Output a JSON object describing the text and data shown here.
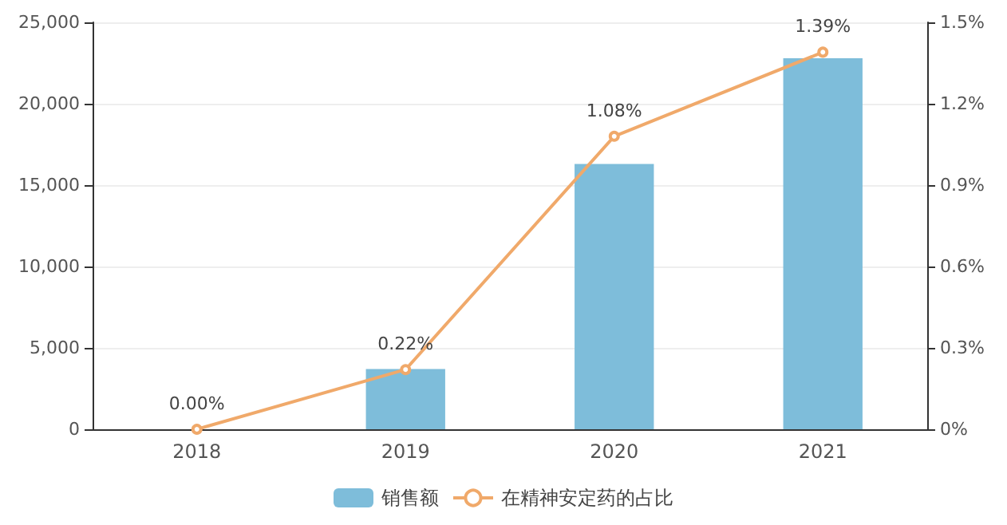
{
  "chart_data": {
    "type": "bar",
    "categories": [
      "2018",
      "2019",
      "2020",
      "2021"
    ],
    "series": [
      {
        "name": "销售额",
        "color": "#7ebdda",
        "values": [
          0,
          3700,
          16300,
          22800
        ]
      },
      {
        "name": "在精神安定药的占比",
        "type": "line",
        "axis": "y2",
        "color": "#f0a96a",
        "values": [
          0.0,
          0.22,
          1.08,
          1.39
        ],
        "value_labels": [
          "0.00%",
          "0.22%",
          "1.08%",
          "1.39%"
        ]
      }
    ],
    "ylim": [
      0,
      25000
    ],
    "yticks": [
      0,
      {
        "value": 5000,
        "label": "5,000"
      },
      {
        "value": 10000,
        "label": "10,000"
      },
      {
        "value": 15000,
        "label": "15,000"
      },
      {
        "value": 20000,
        "label": "20,000"
      },
      {
        "value": 25000,
        "label": "25,000"
      }
    ],
    "y2lim": [
      0,
      1.5
    ],
    "y2ticks": [
      {
        "value": 0,
        "label": "0%"
      },
      {
        "value": 0.3,
        "label": "0.3%"
      },
      {
        "value": 0.6,
        "label": "0.6%"
      },
      {
        "value": 0.9,
        "label": "0.9%"
      },
      {
        "value": 1.2,
        "label": "1.2%"
      },
      {
        "value": 1.5,
        "label": "1.5%"
      }
    ],
    "grid": "y",
    "legend": "bottom",
    "marker": "circle"
  }
}
